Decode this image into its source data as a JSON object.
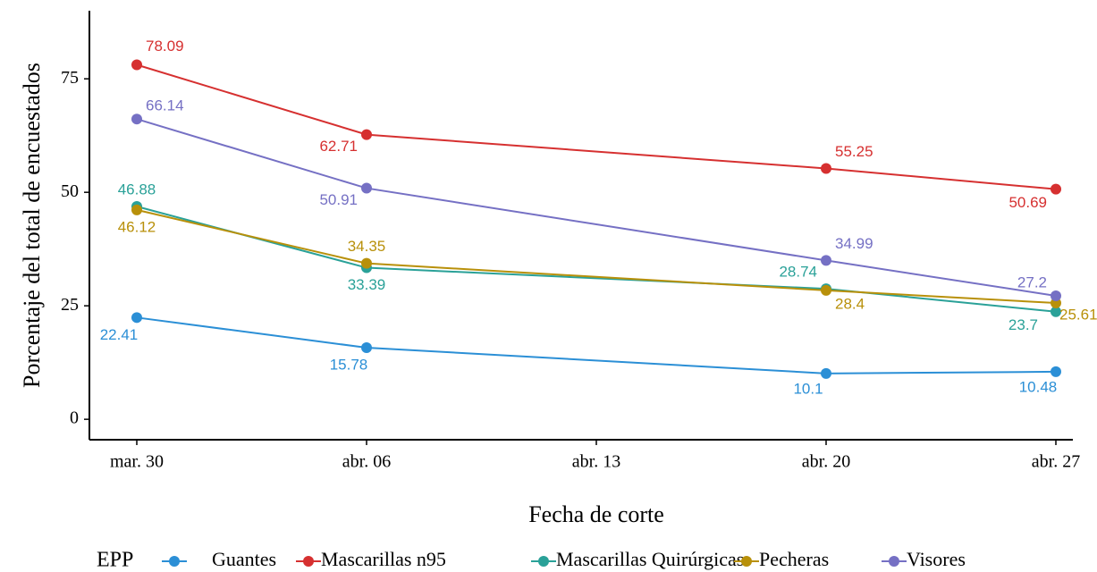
{
  "chart_data": {
    "type": "line",
    "x_label": "Fecha de corte",
    "y_label": "Porcentaje del total de encuestados",
    "legend_title": "EPP",
    "legend_position": "bottom",
    "x": [
      "mar. 30",
      "abr. 06",
      "abr. 20",
      "abr. 27"
    ],
    "xticks": [
      "mar. 30",
      "abr. 06",
      "abr. 13",
      "abr. 20",
      "abr. 27"
    ],
    "ylim": [
      -4.5,
      90
    ],
    "yticks": [
      0,
      25,
      50,
      75
    ],
    "series": [
      {
        "name": "Guantes",
        "color": "#2b8fd6",
        "values": [
          22.41,
          15.78,
          10.1,
          10.48
        ]
      },
      {
        "name": "Mascarillas n95",
        "color": "#d63030",
        "values": [
          78.09,
          62.71,
          55.25,
          50.69
        ]
      },
      {
        "name": "Mascarillas Quirúrgicas",
        "color": "#2aa198",
        "values": [
          46.88,
          33.39,
          28.74,
          23.7
        ]
      },
      {
        "name": "Pecheras",
        "color": "#b8900a",
        "values": [
          46.12,
          34.35,
          28.4,
          25.61
        ]
      },
      {
        "name": "Visores",
        "color": "#7570c4",
        "values": [
          66.14,
          50.91,
          34.99,
          27.2
        ]
      }
    ]
  }
}
